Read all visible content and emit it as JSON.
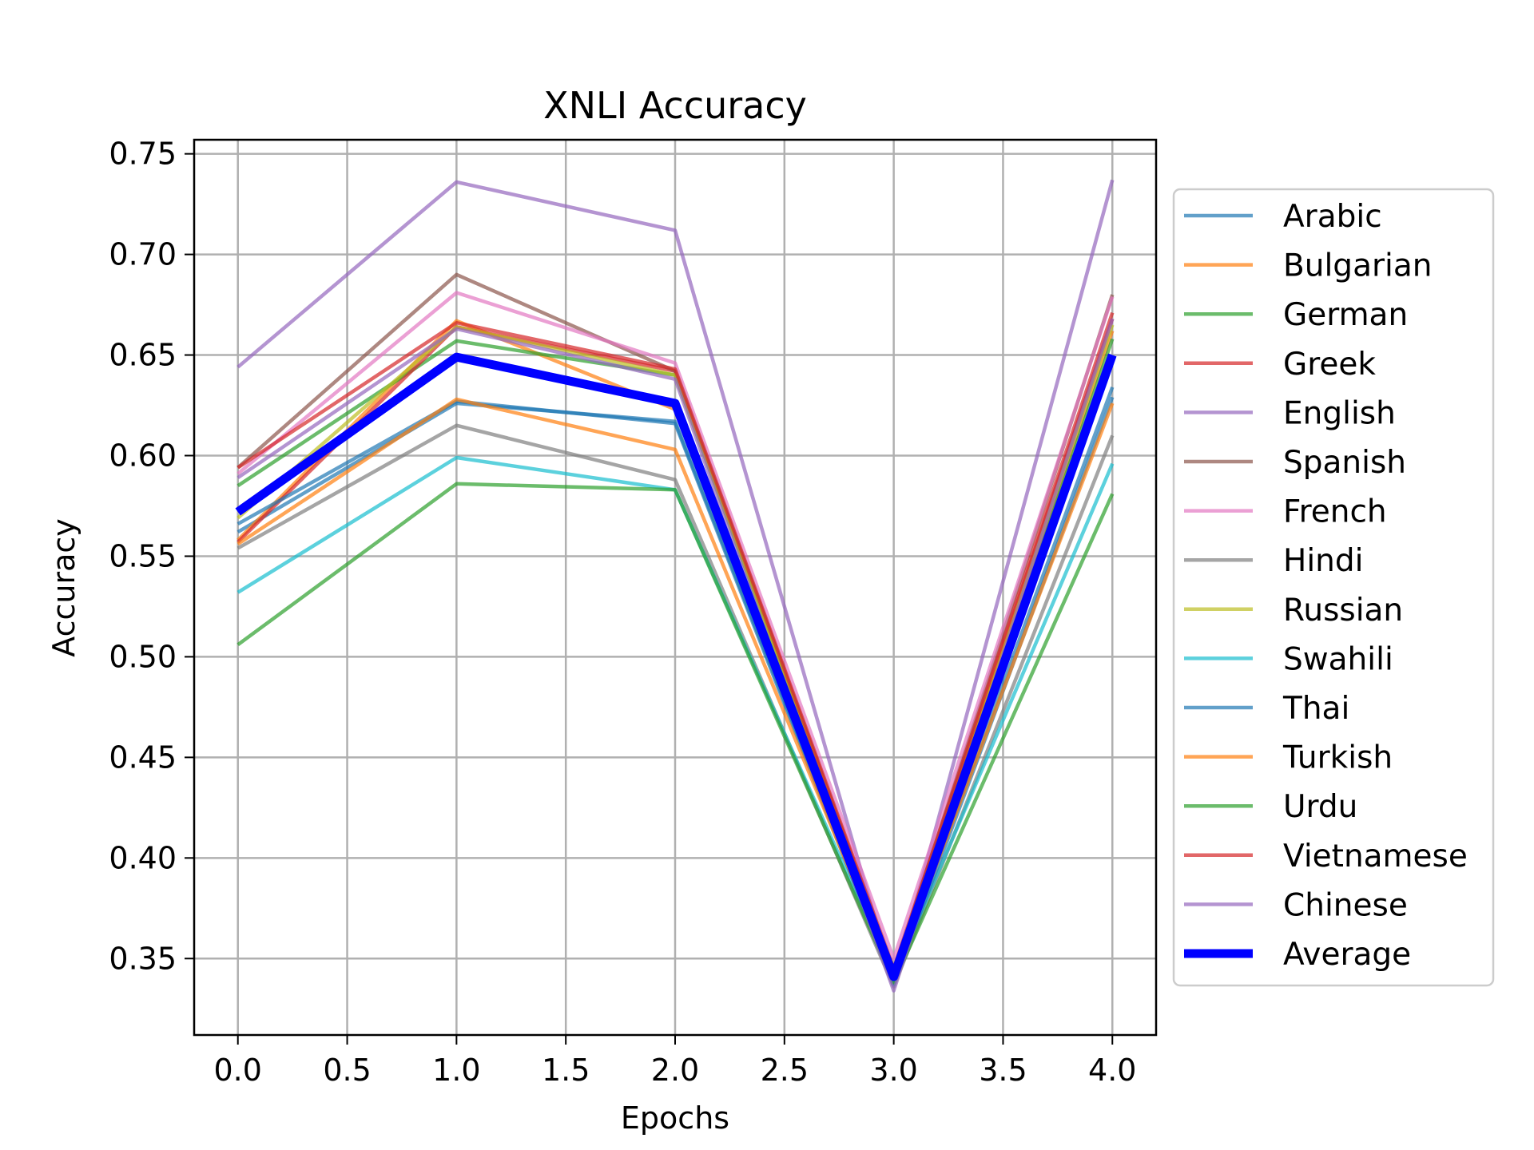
{
  "chart_data": {
    "type": "line",
    "title": "XNLI Accuracy",
    "xlabel": "Epochs",
    "ylabel": "Accuracy",
    "xlim": [
      -0.2,
      4.2
    ],
    "ylim": [
      0.312,
      0.757
    ],
    "xticks": [
      "0.0",
      "0.5",
      "1.0",
      "1.5",
      "2.0",
      "2.5",
      "3.0",
      "3.5",
      "4.0"
    ],
    "yticks": [
      "0.35",
      "0.40",
      "0.45",
      "0.50",
      "0.55",
      "0.60",
      "0.65",
      "0.70",
      "0.75"
    ],
    "grid": true,
    "legend_position": "outside-right",
    "x": [
      0,
      1,
      2,
      3,
      4
    ],
    "series": [
      {
        "name": "Arabic",
        "color": "#1f77b4",
        "values": [
          0.562,
          0.626,
          0.617,
          0.339,
          0.634
        ]
      },
      {
        "name": "Bulgarian",
        "color": "#ff7f0e",
        "values": [
          0.558,
          0.667,
          0.623,
          0.343,
          0.662
        ]
      },
      {
        "name": "German",
        "color": "#2ca02c",
        "values": [
          0.585,
          0.657,
          0.64,
          0.341,
          0.658
        ]
      },
      {
        "name": "Greek",
        "color": "#d62728",
        "values": [
          0.557,
          0.664,
          0.642,
          0.344,
          0.668
        ]
      },
      {
        "name": "English",
        "color": "#9467bd",
        "values": [
          0.644,
          0.736,
          0.712,
          0.338,
          0.737
        ]
      },
      {
        "name": "Spanish",
        "color": "#8c564b",
        "values": [
          0.594,
          0.69,
          0.642,
          0.343,
          0.68
        ]
      },
      {
        "name": "French",
        "color": "#e377c2",
        "values": [
          0.591,
          0.681,
          0.646,
          0.35,
          0.679
        ]
      },
      {
        "name": "Hindi",
        "color": "#7f7f7f",
        "values": [
          0.554,
          0.615,
          0.588,
          0.336,
          0.61
        ]
      },
      {
        "name": "Russian",
        "color": "#bcbd22",
        "values": [
          0.569,
          0.664,
          0.64,
          0.342,
          0.665
        ]
      },
      {
        "name": "Swahili",
        "color": "#17becf",
        "values": [
          0.532,
          0.599,
          0.583,
          0.341,
          0.596
        ]
      },
      {
        "name": "Thai",
        "color": "#1f77b4",
        "values": [
          0.566,
          0.627,
          0.616,
          0.337,
          0.629
        ]
      },
      {
        "name": "Turkish",
        "color": "#ff7f0e",
        "values": [
          0.556,
          0.628,
          0.603,
          0.341,
          0.626
        ]
      },
      {
        "name": "Urdu",
        "color": "#2ca02c",
        "values": [
          0.506,
          0.586,
          0.583,
          0.338,
          0.581
        ]
      },
      {
        "name": "Vietnamese",
        "color": "#d62728",
        "values": [
          0.594,
          0.666,
          0.643,
          0.345,
          0.671
        ]
      },
      {
        "name": "Chinese",
        "color": "#9467bd",
        "values": [
          0.589,
          0.663,
          0.638,
          0.334,
          0.668
        ]
      },
      {
        "name": "Average",
        "color": "#0000ff",
        "values": [
          0.572,
          0.649,
          0.626,
          0.341,
          0.65
        ],
        "emphasis": true
      }
    ]
  }
}
